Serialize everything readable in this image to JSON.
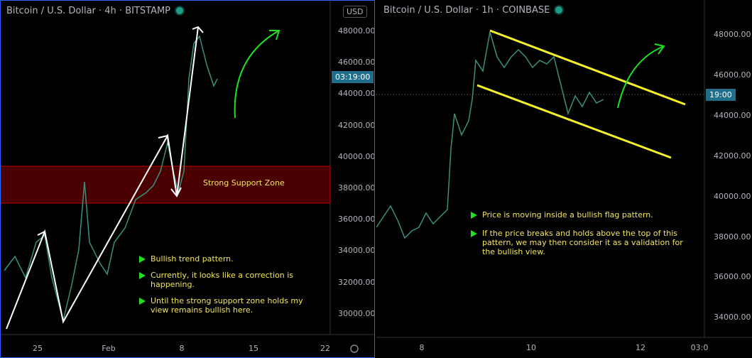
{
  "left_chart": {
    "title": "Bitcoin / U.S. Dollar · 4h · BITSTAMP",
    "currency": "USD",
    "price_axis": [
      "48000.00",
      "46000.00",
      "44000.00",
      "42000.00",
      "40000.00",
      "38000.00",
      "36000.00",
      "34000.00",
      "32000.00",
      "30000.00"
    ],
    "price_tag": "03:19:00",
    "time_axis": [
      "25",
      "Feb",
      "8",
      "15",
      "22"
    ],
    "zone_label": "Strong Support Zone",
    "notes": [
      "Bullish trend pattern.",
      "Currently, it looks like a correction is happening.",
      "Until the strong support zone holds my view remains bullish here."
    ]
  },
  "right_chart": {
    "title": "Bitcoin / U.S. Dollar · 1h · COINBASE",
    "price_axis": [
      "48000.00",
      "46000.00",
      "44000.00",
      "42000.00",
      "40000.00",
      "38000.00",
      "36000.00",
      "34000.00"
    ],
    "price_tag": "19:00",
    "time_axis": [
      "8",
      "10",
      "12",
      "03:0"
    ],
    "notes": [
      "Price is moving inside a bullish flag pattern.",
      "If the price breaks and holds above the top of this pattern, we may then consider it as a validation for the bullish view."
    ]
  }
}
